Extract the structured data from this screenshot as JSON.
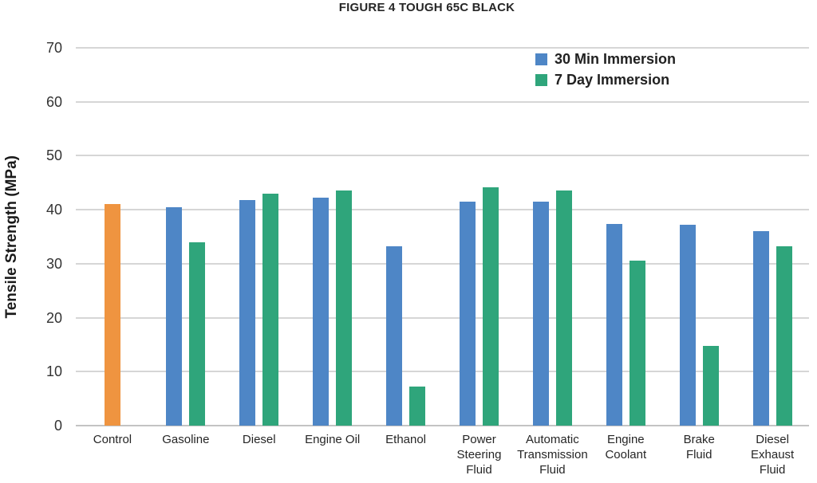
{
  "chart_data": {
    "type": "bar",
    "title": "FIGURE 4 TOUGH 65C BLACK",
    "xlabel": "",
    "ylabel": "Tensile Strength (MPa)",
    "ylim": [
      0,
      70
    ],
    "yticks": [
      0,
      10,
      20,
      30,
      40,
      50,
      60,
      70
    ],
    "grid": true,
    "legend_position": "top-right-inside",
    "categories": [
      "Control",
      "Gasoline",
      "Diesel",
      "Engine Oil",
      "Ethanol",
      "Power\nSteering\nFluid",
      "Automatic\nTransmission\nFluid",
      "Engine\nCoolant",
      "Brake\nFluid",
      "Diesel\nExhaust\nFluid"
    ],
    "control_series": {
      "name": "Control",
      "color": "#EF9440",
      "values": [
        41.0,
        null,
        null,
        null,
        null,
        null,
        null,
        null,
        null,
        null
      ]
    },
    "series": [
      {
        "name": "30 Min Immersion",
        "color": "#4E86C6",
        "values": [
          null,
          40.5,
          41.8,
          42.3,
          33.2,
          41.5,
          41.5,
          37.4,
          37.2,
          36.0
        ]
      },
      {
        "name": "7 Day Immersion",
        "color": "#2FA57B",
        "values": [
          null,
          34.0,
          43.0,
          43.5,
          7.3,
          44.2,
          43.5,
          30.5,
          14.7,
          33.3
        ]
      }
    ],
    "colors": {
      "gridline": "#d6d6d6",
      "axis_line": "#c3c3c3",
      "text": "#262626"
    }
  }
}
